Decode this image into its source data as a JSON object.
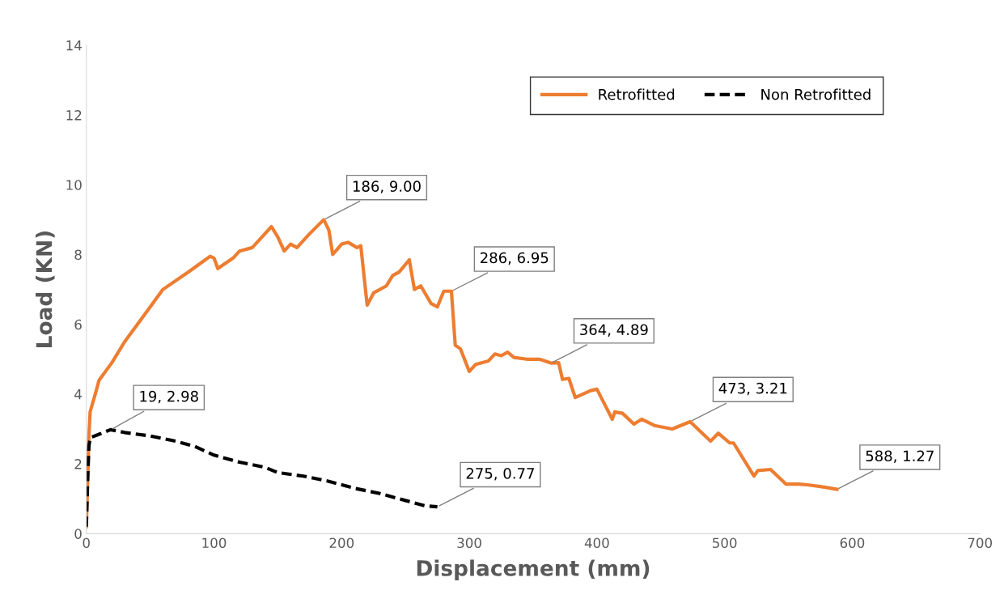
{
  "chart_data": {
    "type": "line",
    "xlabel": "Displacement (mm)",
    "ylabel": "Load (KN)",
    "xlim": [
      0,
      700
    ],
    "xticks": [
      0,
      100,
      200,
      300,
      400,
      500,
      600,
      700
    ],
    "ylim": [
      0,
      14
    ],
    "yticks": [
      0,
      2,
      4,
      6,
      8,
      10,
      12,
      14
    ],
    "grid": false,
    "legend": "top right",
    "marker": "none",
    "series": [
      {
        "name": "Retrofitted",
        "color": "#ed7d31",
        "line_style": "solid",
        "x": [
          0,
          1,
          2,
          3,
          7,
          10,
          20,
          30,
          40,
          50,
          60,
          80,
          97,
          100,
          103,
          115,
          120,
          130,
          140,
          145,
          150,
          155,
          160,
          165,
          175,
          186,
          190,
          193,
          200,
          205,
          212,
          215,
          220,
          225,
          235,
          240,
          245,
          253,
          257,
          262,
          270,
          275,
          280,
          286,
          289,
          293,
          300,
          305,
          315,
          320,
          325,
          330,
          335,
          345,
          355,
          364,
          370,
          373,
          378,
          383,
          395,
          400,
          412,
          414,
          420,
          429,
          435,
          445,
          459,
          473,
          489,
          495,
          504,
          507,
          523,
          526,
          536,
          548,
          558,
          565,
          575,
          588
        ],
        "values": [
          0.2,
          1.5,
          2.8,
          3.5,
          4.0,
          4.4,
          4.9,
          5.5,
          6.0,
          6.5,
          7.0,
          7.5,
          7.95,
          7.9,
          7.6,
          7.9,
          8.1,
          8.2,
          8.6,
          8.8,
          8.5,
          8.1,
          8.3,
          8.2,
          8.6,
          9.0,
          8.7,
          8.0,
          8.3,
          8.35,
          8.2,
          8.25,
          6.55,
          6.9,
          7.1,
          7.4,
          7.5,
          7.85,
          7.0,
          7.1,
          6.6,
          6.5,
          6.95,
          6.95,
          5.4,
          5.3,
          4.65,
          4.85,
          4.95,
          5.15,
          5.1,
          5.2,
          5.05,
          5.0,
          5.0,
          4.89,
          4.9,
          4.42,
          4.45,
          3.9,
          4.1,
          4.14,
          3.28,
          3.49,
          3.45,
          3.14,
          3.28,
          3.1,
          3.0,
          3.21,
          2.65,
          2.88,
          2.6,
          2.6,
          1.65,
          1.81,
          1.84,
          1.42,
          1.42,
          1.4,
          1.35,
          1.27
        ]
      },
      {
        "name": "Non Retrofitted",
        "color": "#000000",
        "line_style": "dashed",
        "x": [
          0,
          1,
          2,
          3,
          10,
          19,
          30,
          50,
          70,
          85,
          100,
          120,
          140,
          150,
          170,
          190,
          210,
          230,
          250,
          265,
          275
        ],
        "values": [
          0.2,
          1.5,
          2.5,
          2.75,
          2.85,
          2.98,
          2.9,
          2.8,
          2.65,
          2.5,
          2.25,
          2.05,
          1.9,
          1.75,
          1.65,
          1.5,
          1.3,
          1.15,
          0.95,
          0.8,
          0.77
        ]
      }
    ],
    "annotations": [
      {
        "text": "186, 9.00",
        "x": 186,
        "y": 9.0
      },
      {
        "text": "286, 6.95",
        "x": 286,
        "y": 6.95
      },
      {
        "text": "364, 4.89",
        "x": 364,
        "y": 4.89
      },
      {
        "text": "473, 3.21",
        "x": 473,
        "y": 3.21
      },
      {
        "text": "588, 1.27",
        "x": 588,
        "y": 1.27
      },
      {
        "text": "19, 2.98",
        "x": 19,
        "y": 2.98
      },
      {
        "text": "275, 0.77",
        "x": 275,
        "y": 0.77
      }
    ]
  }
}
